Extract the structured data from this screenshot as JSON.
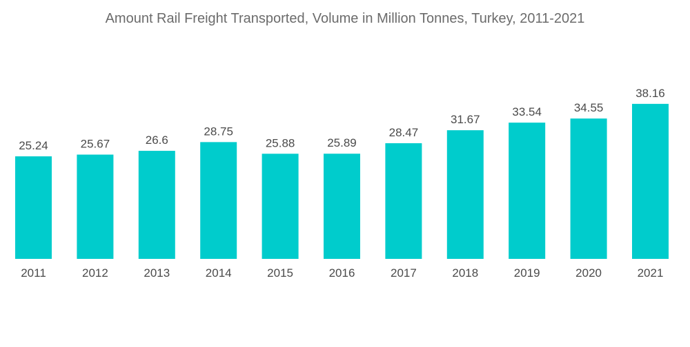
{
  "chart_data": {
    "type": "bar",
    "title": "Amount Rail Freight Transported, Volume in Million Tonnes, Turkey, 2011-2021",
    "xlabel": "",
    "ylabel": "",
    "categories": [
      "2011",
      "2012",
      "2013",
      "2014",
      "2015",
      "2016",
      "2017",
      "2018",
      "2019",
      "2020",
      "2021"
    ],
    "values": [
      25.24,
      25.67,
      26.6,
      28.75,
      25.88,
      25.89,
      28.47,
      31.67,
      33.54,
      34.55,
      38.16
    ],
    "value_labels": [
      "25.24",
      "25.67",
      "26.6",
      "28.75",
      "25.88",
      "25.89",
      "28.47",
      "31.67",
      "33.54",
      "34.55",
      "38.16"
    ],
    "ylim": [
      0,
      38.16
    ],
    "grid": false,
    "legend": "none",
    "bar_color": "#00cccc"
  }
}
